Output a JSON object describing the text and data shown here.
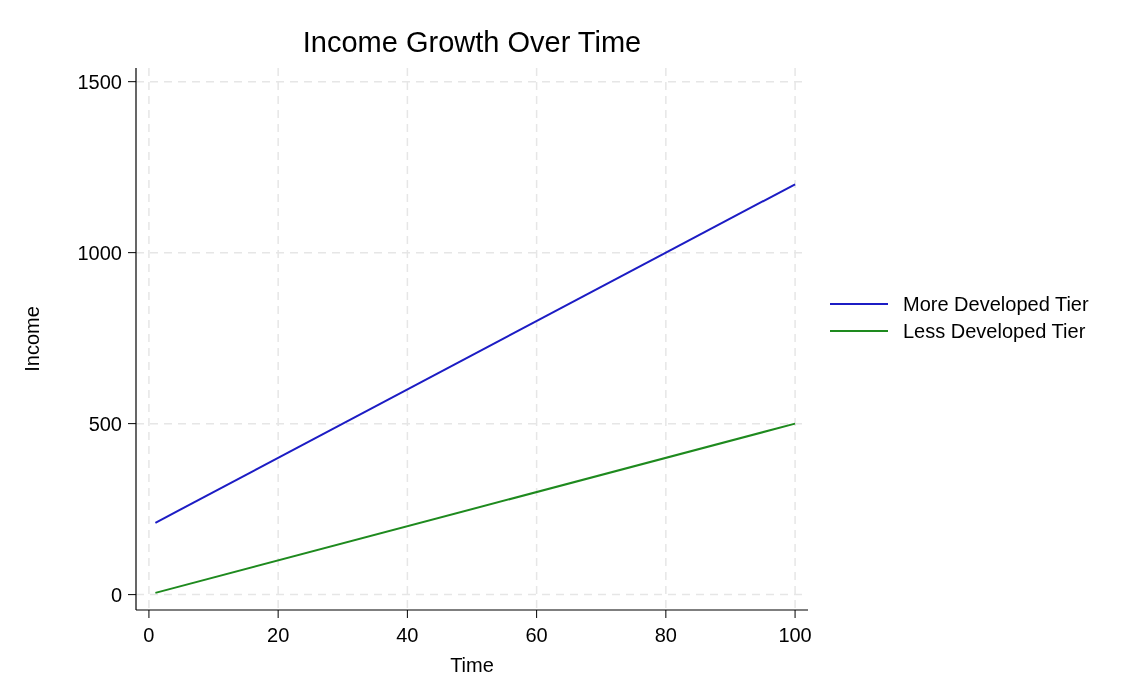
{
  "chart_data": {
    "type": "line",
    "title": "Income Growth Over Time",
    "xlabel": "Time",
    "ylabel": "Income",
    "x": [
      1,
      100
    ],
    "series": [
      {
        "name": "More Developed Tier",
        "color": "#1c1cc4",
        "values": [
          210,
          1200
        ]
      },
      {
        "name": "Less Developed Tier",
        "color": "#1e8a1e",
        "values": [
          5,
          500
        ]
      }
    ],
    "xlim": [
      -2,
      102
    ],
    "xticks": [
      0,
      20,
      40,
      60,
      80,
      100
    ],
    "ylim": [
      -45,
      1540
    ],
    "yticks": [
      0,
      500,
      1000,
      1500
    ],
    "grid": true,
    "legend": "right",
    "line_style": "solid",
    "marker": "none"
  }
}
